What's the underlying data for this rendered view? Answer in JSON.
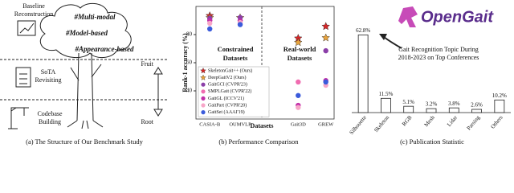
{
  "panel_a": {
    "steps": [
      [
        "Baseline",
        "Reconstruction"
      ],
      [
        "SoTA",
        "Revisiting"
      ],
      [
        "Codebase",
        "Building"
      ]
    ],
    "tags": [
      "#Multi-modal",
      "#Model-based",
      "#Appearance-based"
    ],
    "arrow_top": "Fruit",
    "arrow_bottom": "Root",
    "caption": "(a) The Structure of Our Benchmark Study"
  },
  "logo": "OpenGait",
  "chart_data": [
    {
      "type": "scatter",
      "ylabel": "Rank-1 accuracy (%)",
      "xlabel": "Datasets",
      "categories": [
        "CASIA-B",
        "OUMVLP",
        "Gait3D",
        "GREW"
      ],
      "annotations": [
        [
          "Constrained",
          "Datasets"
        ],
        [
          "Real-world",
          "Datasets"
        ]
      ],
      "ylim": [
        20,
        100
      ],
      "yticks": [
        40,
        60,
        80
      ],
      "caption": "(b) Performance Comparison",
      "series": [
        {
          "name": "SkeletonGait++ (Ours)",
          "color": "#d62728",
          "marker": "star",
          "values": [
            93.4,
            null,
            77.4,
            85.8
          ]
        },
        {
          "name": "DeepGaitV2 (Ours)",
          "color": "#e8a33c",
          "marker": "star",
          "values": [
            92.0,
            92.0,
            74.4,
            77.7
          ]
        },
        {
          "name": "GaitGCI (CVPR'23)",
          "color": "#8b3fa8",
          "marker": "circle",
          "values": [
            91.5,
            92.1,
            null,
            68.5
          ]
        },
        {
          "name": "SMPLGait (CVPR'22)",
          "color": "#f06cb0",
          "marker": "circle",
          "values": [
            null,
            null,
            46.3,
            null
          ]
        },
        {
          "name": "GaitGL (ICCV'21)",
          "color": "#c22fa8",
          "marker": "circle",
          "values": [
            90.0,
            89.7,
            29.7,
            47.3
          ]
        },
        {
          "name": "GaitPart (CVPR'20)",
          "color": "#f7a6c8",
          "marker": "circle",
          "values": [
            88.0,
            88.5,
            28.2,
            44.0
          ]
        },
        {
          "name": "GaitSet (AAAI'19)",
          "color": "#3b5bdb",
          "marker": "circle",
          "values": [
            84.0,
            87.1,
            36.7,
            46.3
          ]
        }
      ]
    },
    {
      "type": "bar",
      "title": [
        "Gait Recognition Topic During",
        "2018-2023 on Top Conferences"
      ],
      "categories": [
        "Silhouette",
        "Skeleton",
        "RGB",
        "Mesh",
        "Lidar",
        "Parsing",
        "Others"
      ],
      "values": [
        62.8,
        11.5,
        5.1,
        3.2,
        3.8,
        2.6,
        10.2
      ],
      "value_labels": [
        "62.8%",
        "11.5%",
        "5.1%",
        "3.2%",
        "3.8%",
        "2.6%",
        "10.2%"
      ],
      "ylim": [
        0,
        65
      ],
      "color": "#ffffff",
      "caption": "(c) Publication Statistic"
    }
  ]
}
